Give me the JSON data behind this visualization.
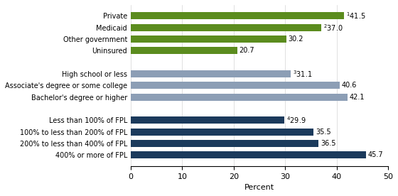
{
  "categories": [
    "400% or more of FPL",
    "200% to less than 400% of FPL",
    "100% to less than 200% of FPL",
    "Less than 100% of FPL",
    "",
    "Bachelor's degree or higher",
    "Associate's degree or some college",
    "High school or less",
    " ",
    "Uninsured",
    "Other government",
    "Medicaid",
    "Private"
  ],
  "values": [
    45.7,
    36.5,
    35.5,
    29.9,
    0,
    42.1,
    40.6,
    31.1,
    0,
    20.7,
    30.2,
    37.0,
    41.5
  ],
  "superscripts": [
    null,
    null,
    null,
    "4",
    null,
    null,
    null,
    "3",
    null,
    null,
    null,
    "2",
    "1"
  ],
  "plain_values": [
    "45.7",
    "36.5",
    "35.5",
    "29.9",
    "",
    "42.1",
    "40.6",
    "31.1",
    "",
    "20.7",
    "30.2",
    "37.0",
    "41.5"
  ],
  "colors": [
    "#1b3a5c",
    "#1b3a5c",
    "#1b3a5c",
    "#1b3a5c",
    "#ffffff",
    "#8c9eb5",
    "#8c9eb5",
    "#8c9eb5",
    "#ffffff",
    "#5b8c1e",
    "#5b8c1e",
    "#5b8c1e",
    "#5b8c1e"
  ],
  "xlim": [
    0,
    50
  ],
  "xticks": [
    0,
    10,
    20,
    30,
    40,
    50
  ],
  "xlabel": "Percent",
  "bar_height": 0.62,
  "figure_width": 5.6,
  "figure_height": 2.76,
  "dpi": 100
}
